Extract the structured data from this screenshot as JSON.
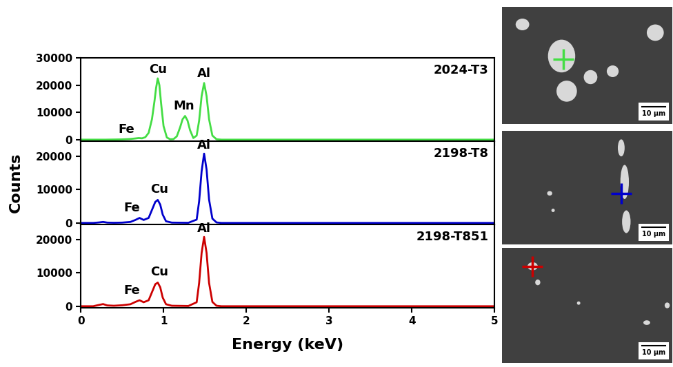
{
  "chart_data": [
    {
      "type": "line",
      "title": "2024-T3",
      "color": "#44dd44",
      "x": [
        0,
        0.3,
        0.5,
        0.6,
        0.66,
        0.7,
        0.74,
        0.78,
        0.82,
        0.86,
        0.89,
        0.91,
        0.93,
        0.95,
        0.97,
        1.0,
        1.04,
        1.08,
        1.12,
        1.16,
        1.2,
        1.23,
        1.26,
        1.29,
        1.32,
        1.36,
        1.4,
        1.43,
        1.46,
        1.49,
        1.52,
        1.55,
        1.59,
        1.64,
        1.7,
        2.0,
        5.0
      ],
      "values": [
        0,
        0,
        100,
        250,
        450,
        600,
        500,
        900,
        2500,
        7500,
        14000,
        19000,
        22500,
        20000,
        13500,
        5000,
        800,
        150,
        200,
        1200,
        4500,
        7500,
        8700,
        7000,
        3500,
        600,
        1500,
        7000,
        16000,
        20800,
        16000,
        7500,
        1500,
        150,
        0,
        0,
        0
      ],
      "xlim": [
        0,
        5
      ],
      "xticks": [
        0,
        1,
        2,
        3,
        4,
        5
      ],
      "ylim": [
        -600,
        30000
      ],
      "yticks": [
        0,
        10000,
        20000,
        30000
      ],
      "tick_labels": "y",
      "annotations": [
        {
          "text": "Fe",
          "x": 0.55,
          "y": 1500
        },
        {
          "text": "Cu",
          "x": 0.93,
          "y": 23500
        },
        {
          "text": "Mn",
          "x": 1.25,
          "y": 10000
        },
        {
          "text": "Al",
          "x": 1.49,
          "y": 22000
        }
      ]
    },
    {
      "type": "line",
      "title": "2198-T8",
      "color": "#0000cc",
      "y_label": "Counts",
      "x": [
        0,
        0.15,
        0.22,
        0.27,
        0.32,
        0.4,
        0.5,
        0.6,
        0.66,
        0.71,
        0.76,
        0.82,
        0.87,
        0.9,
        0.93,
        0.96,
        0.99,
        1.03,
        1.1,
        1.3,
        1.4,
        1.43,
        1.46,
        1.49,
        1.52,
        1.55,
        1.59,
        1.64,
        1.7,
        2.0,
        5.0
      ],
      "values": [
        0,
        0,
        150,
        300,
        100,
        50,
        100,
        300,
        900,
        1500,
        900,
        1500,
        4500,
        6300,
        6900,
        5500,
        2500,
        500,
        100,
        50,
        1000,
        6500,
        15500,
        20800,
        16000,
        7000,
        1300,
        150,
        0,
        0,
        0
      ],
      "xlim": [
        0,
        5
      ],
      "xticks": [
        0,
        1,
        2,
        3,
        4,
        5
      ],
      "ylim": [
        -500,
        24500
      ],
      "yticks": [
        0,
        10000,
        20000
      ],
      "tick_labels": "y",
      "annotations": [
        {
          "text": "Fe",
          "x": 0.62,
          "y": 2600
        },
        {
          "text": "Cu",
          "x": 0.95,
          "y": 8200
        },
        {
          "text": "Al",
          "x": 1.49,
          "y": 21500
        }
      ]
    },
    {
      "type": "line",
      "title": "2198-T851",
      "color": "#cc0000",
      "x_label": "Energy (keV)",
      "x": [
        0,
        0.15,
        0.22,
        0.27,
        0.32,
        0.4,
        0.5,
        0.6,
        0.66,
        0.71,
        0.76,
        0.82,
        0.87,
        0.9,
        0.93,
        0.96,
        0.99,
        1.03,
        1.1,
        1.3,
        1.4,
        1.43,
        1.46,
        1.49,
        1.52,
        1.55,
        1.59,
        1.64,
        1.7,
        2.0,
        5.0
      ],
      "values": [
        0,
        0,
        400,
        650,
        250,
        150,
        300,
        600,
        1300,
        1800,
        1200,
        1800,
        4800,
        6600,
        7100,
        5700,
        2600,
        600,
        150,
        80,
        1200,
        7000,
        16000,
        20800,
        16000,
        7000,
        1300,
        150,
        0,
        0,
        0
      ],
      "xlim": [
        0,
        5
      ],
      "xticks": [
        0,
        1,
        2,
        3,
        4,
        5
      ],
      "ylim": [
        -500,
        24500
      ],
      "yticks": [
        0,
        10000,
        20000
      ],
      "annotations": [
        {
          "text": "Fe",
          "x": 0.62,
          "y": 2900
        },
        {
          "text": "Cu",
          "x": 0.95,
          "y": 8400
        },
        {
          "text": "Al",
          "x": 1.49,
          "y": 21500
        }
      ]
    }
  ],
  "images": [
    {
      "scale_bar": "10 µm"
    },
    {
      "scale_bar": "10 µm"
    },
    {
      "scale_bar": "10 µm"
    }
  ]
}
